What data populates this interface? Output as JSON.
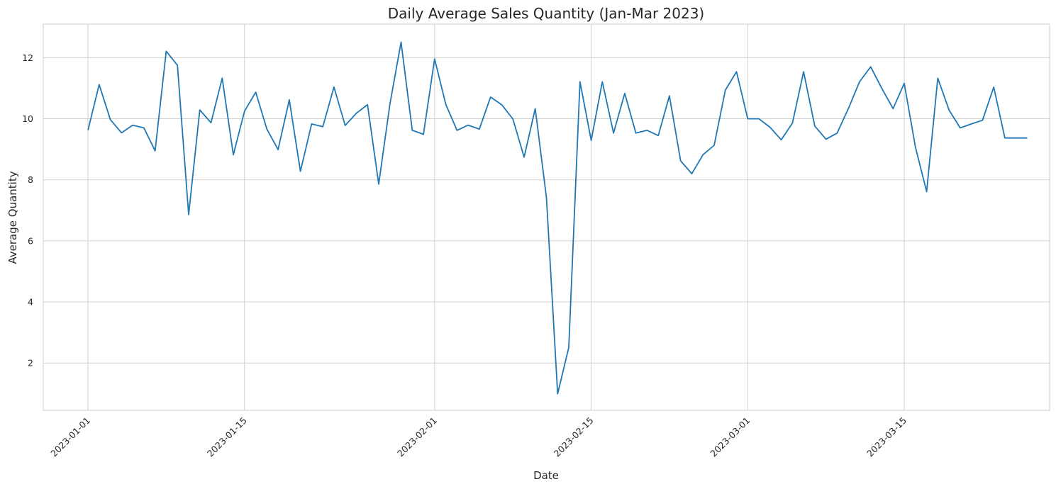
{
  "chart_data": {
    "type": "line",
    "title": "Daily Average Sales Quantity (Jan-Mar 2023)",
    "xlabel": "Date",
    "ylabel": "Average Quantity",
    "x_ticks": [
      "2023-01-01",
      "2023-01-15",
      "2023-02-01",
      "2023-02-15",
      "2023-03-01",
      "2023-03-15"
    ],
    "y_ticks": [
      2,
      4,
      6,
      8,
      10,
      12
    ],
    "xlim": [
      "2022-12-28",
      "2023-03-28"
    ],
    "ylim": [
      0.45,
      13.1
    ],
    "grid": true,
    "color": "#1f77b4",
    "series": [
      {
        "x": [
          "2023-01-01",
          "2023-01-02",
          "2023-01-03",
          "2023-01-04",
          "2023-01-05",
          "2023-01-06",
          "2023-01-07",
          "2023-01-08",
          "2023-01-09",
          "2023-01-10",
          "2023-01-11",
          "2023-01-12",
          "2023-01-13",
          "2023-01-14",
          "2023-01-15",
          "2023-01-16",
          "2023-01-17",
          "2023-01-18",
          "2023-01-19",
          "2023-01-20",
          "2023-01-21",
          "2023-01-22",
          "2023-01-23",
          "2023-01-24",
          "2023-01-25",
          "2023-01-26",
          "2023-01-27",
          "2023-01-28",
          "2023-01-29",
          "2023-01-30",
          "2023-01-31",
          "2023-02-01",
          "2023-02-02",
          "2023-02-03",
          "2023-02-04",
          "2023-02-05",
          "2023-02-06",
          "2023-02-07",
          "2023-02-08",
          "2023-02-09",
          "2023-02-10",
          "2023-02-11",
          "2023-02-12",
          "2023-02-13",
          "2023-02-14",
          "2023-02-15",
          "2023-02-16",
          "2023-02-17",
          "2023-02-18",
          "2023-02-19",
          "2023-02-20",
          "2023-02-21",
          "2023-02-22",
          "2023-02-23",
          "2023-02-24",
          "2023-02-25",
          "2023-02-26",
          "2023-02-27",
          "2023-02-28",
          "2023-03-01",
          "2023-03-02",
          "2023-03-03",
          "2023-03-04",
          "2023-03-05",
          "2023-03-06",
          "2023-03-07",
          "2023-03-08",
          "2023-03-09",
          "2023-03-10",
          "2023-03-11",
          "2023-03-12",
          "2023-03-13",
          "2023-03-14",
          "2023-03-15",
          "2023-03-16",
          "2023-03-17",
          "2023-03-18",
          "2023-03-19",
          "2023-03-20",
          "2023-03-21",
          "2023-03-22",
          "2023-03-23",
          "2023-03-24",
          "2023-03-25",
          "2023-03-26"
        ],
        "values": [
          9.63,
          11.12,
          9.97,
          9.54,
          9.79,
          9.7,
          8.95,
          12.21,
          11.75,
          6.86,
          10.29,
          9.87,
          11.33,
          8.82,
          10.25,
          10.87,
          9.66,
          8.99,
          10.62,
          8.28,
          9.83,
          9.74,
          11.04,
          9.78,
          10.18,
          10.46,
          7.86,
          10.48,
          12.51,
          9.62,
          9.49,
          11.96,
          10.47,
          9.62,
          9.79,
          9.66,
          10.71,
          10.46,
          9.99,
          8.74,
          10.33,
          7.42,
          0.99,
          2.51,
          11.21,
          9.29,
          11.21,
          9.53,
          10.83,
          9.53,
          9.62,
          9.45,
          10.75,
          8.62,
          8.2,
          8.82,
          9.13,
          10.94,
          11.54,
          10.0,
          10.0,
          9.72,
          9.31,
          9.86,
          11.54,
          9.76,
          9.33,
          9.53,
          10.33,
          11.21,
          11.7,
          10.99,
          10.33,
          11.16,
          9.07,
          7.61,
          11.33,
          10.29,
          9.7,
          9.83,
          9.95,
          11.04,
          9.37,
          9.37,
          9.37
        ]
      }
    ]
  }
}
